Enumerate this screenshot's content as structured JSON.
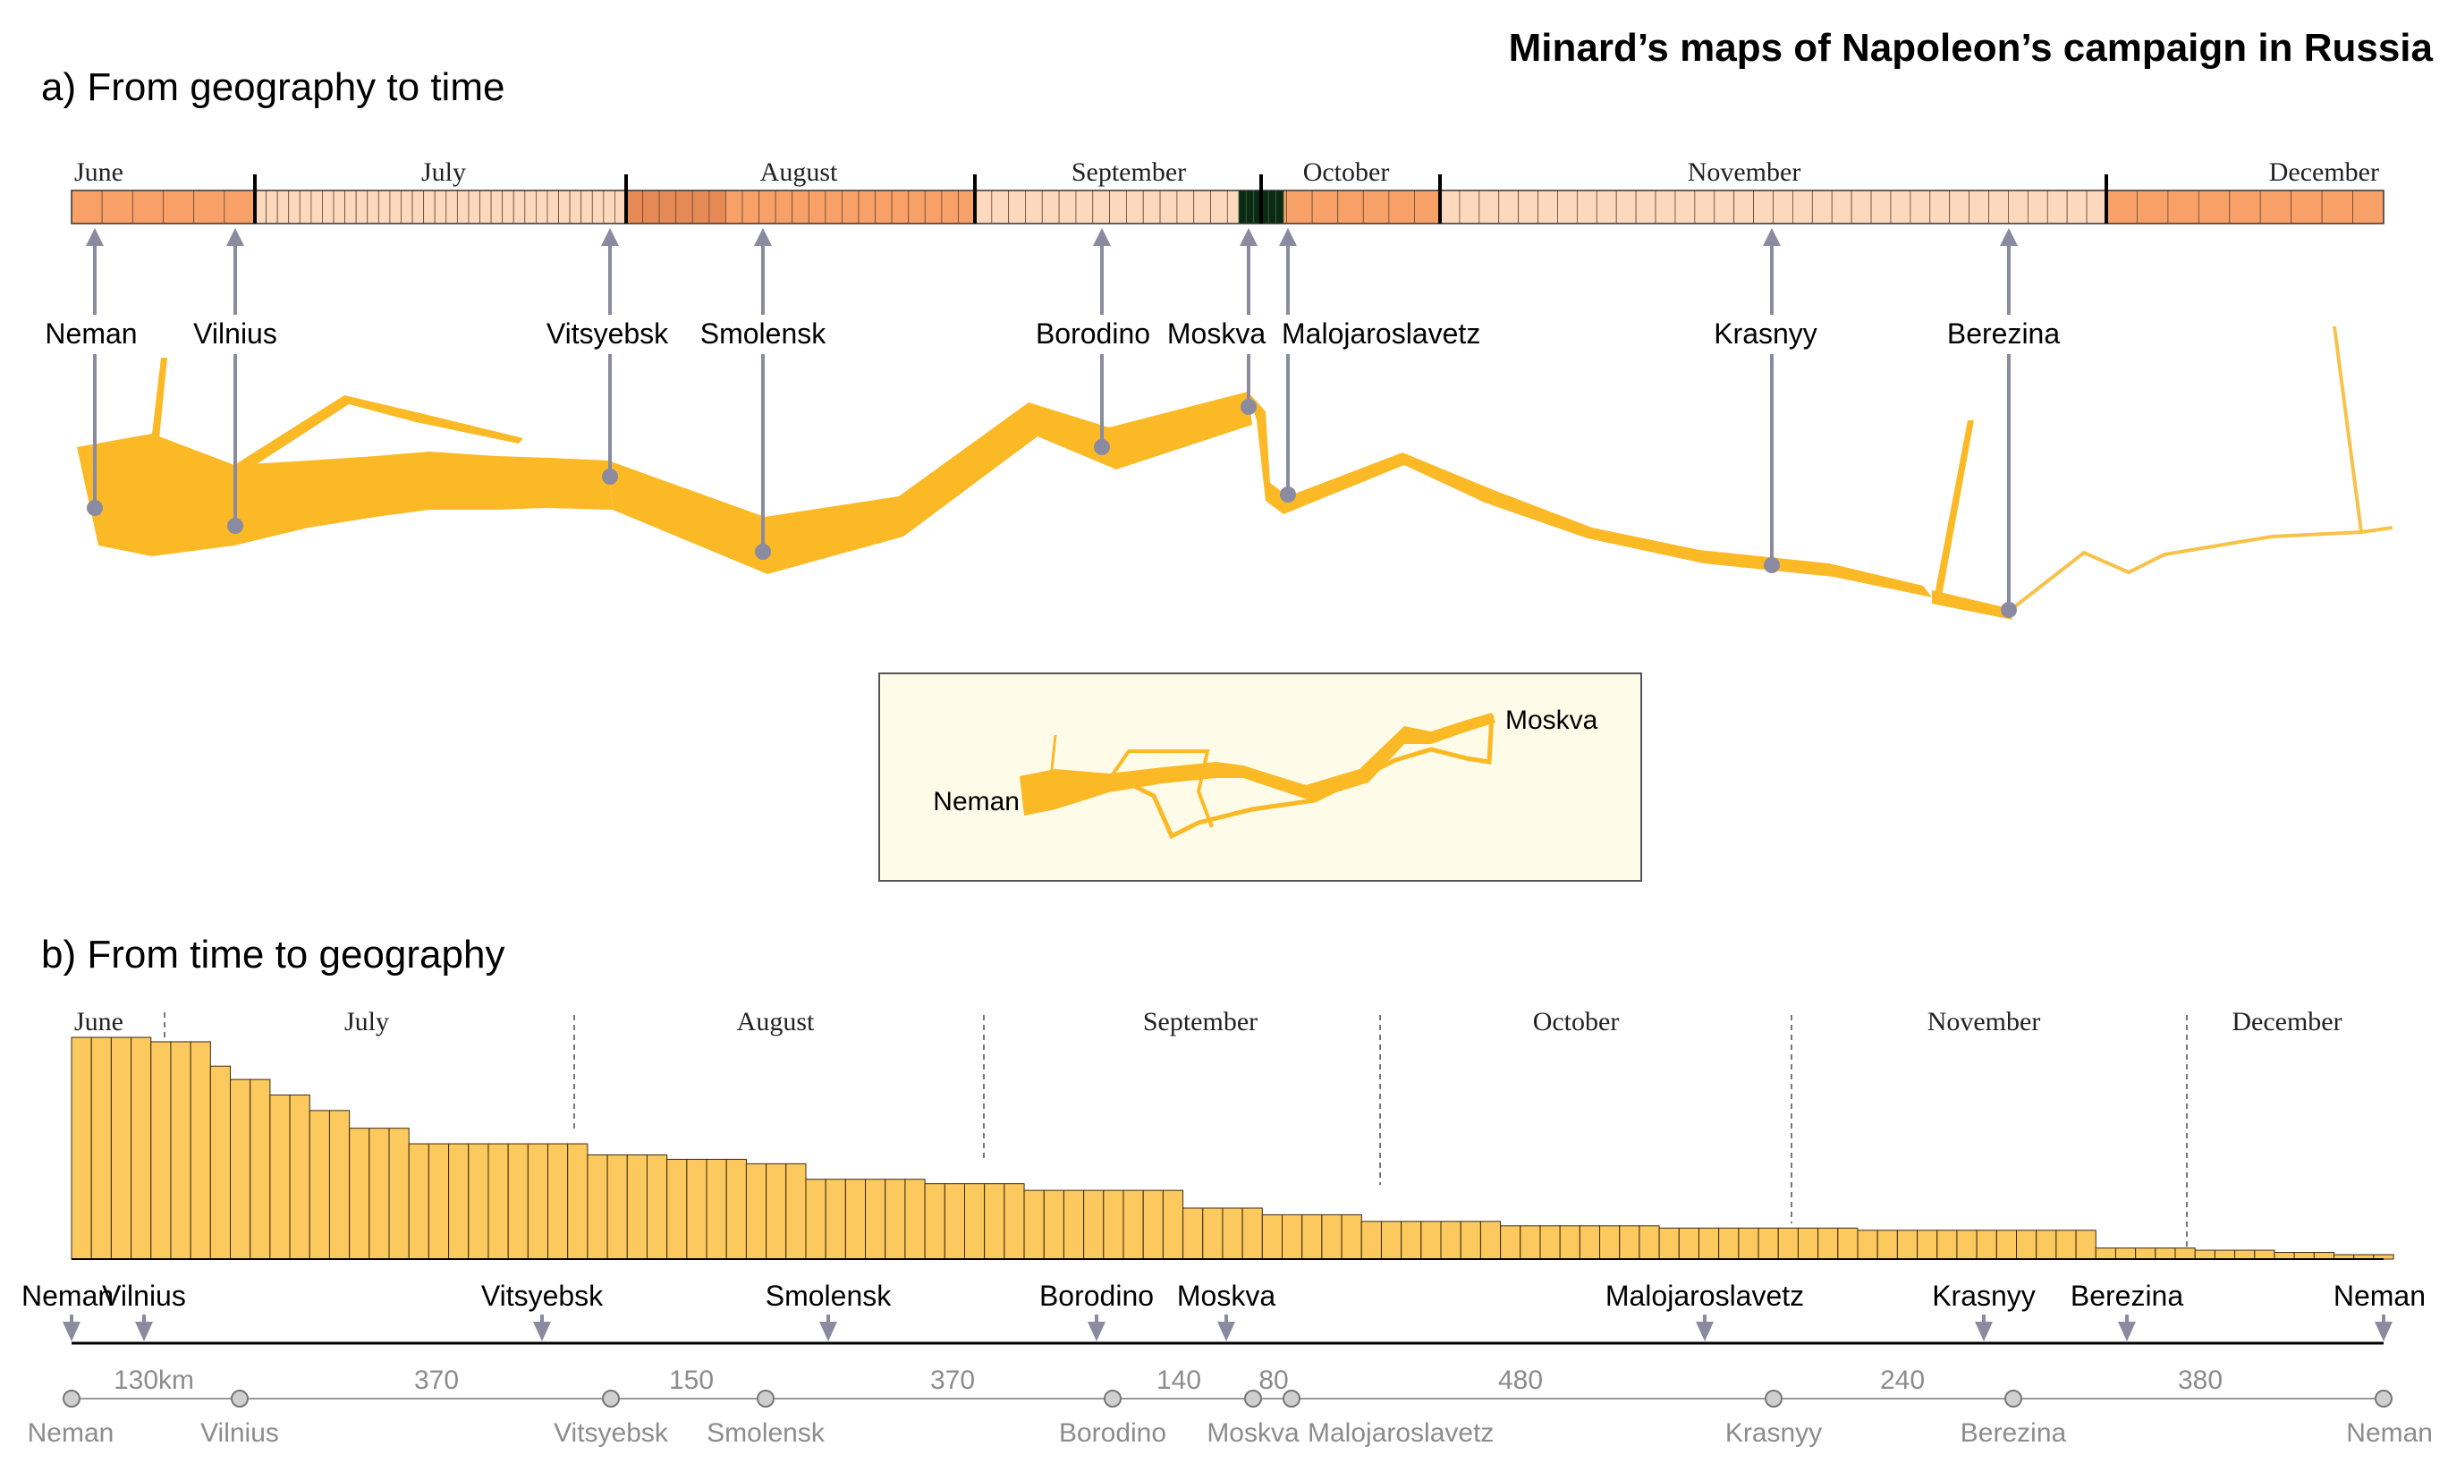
{
  "title": "Minard’s maps of Napoleon’s campaign in Russia",
  "colors": {
    "flow": "#fbb925",
    "flow_light": "#f7cf6e",
    "bar_fill": "#fcc95f",
    "timeline_dark": "#f7a067",
    "timeline_light": "#fcd9bd",
    "timeline_darkest": "#0c2a13",
    "marker": "#8a8aa0",
    "inset_bg": "#fefce8",
    "grey_text": "#8c8c8c"
  },
  "panel_a": {
    "heading": "a) From geography to time",
    "months": [
      "June",
      "July",
      "August",
      "September",
      "October",
      "November",
      "December"
    ],
    "places": [
      "Neman",
      "Vilnius",
      "Vitsyebsk",
      "Smolensk",
      "Borodino",
      "Moskva",
      "Malojaroslavetz",
      "Krasnyy",
      "Berezina"
    ],
    "inset": {
      "start_label": "Neman",
      "end_label": "Moskva"
    }
  },
  "chart_data": [
    {
      "type": "line",
      "title": "a) From geography to time",
      "description_source": "flow band of army size along route, linked to a daily timeline",
      "timeline_months": [
        "June",
        "July",
        "August",
        "September",
        "October",
        "November",
        "December"
      ],
      "events": [
        {
          "place": "Neman",
          "month": "June"
        },
        {
          "place": "Vilnius",
          "month": "June"
        },
        {
          "place": "Vitsyebsk",
          "month": "July"
        },
        {
          "place": "Smolensk",
          "month": "August"
        },
        {
          "place": "Borodino",
          "month": "September"
        },
        {
          "place": "Moskva",
          "month": "September"
        },
        {
          "place": "Malojaroslavetz",
          "month": "October"
        },
        {
          "place": "Krasnyy",
          "month": "November"
        },
        {
          "place": "Berezina",
          "month": "November"
        }
      ]
    },
    {
      "type": "bar",
      "title": "b) From time to geography",
      "months": [
        "June",
        "July",
        "August",
        "September",
        "October",
        "November",
        "December"
      ],
      "segment_values": [
        100,
        100,
        100,
        100,
        100,
        100,
        100,
        100,
        100,
        100,
        100,
        100,
        100,
        100,
        100,
        98,
        98,
        98,
        98,
        98,
        98,
        98,
        98,
        98,
        98,
        98,
        87,
        87,
        87,
        87,
        87,
        81,
        81,
        81,
        81,
        81,
        81,
        81,
        81,
        81,
        74,
        74,
        74,
        74,
        74,
        67,
        67,
        67,
        67,
        67,
        67,
        67,
        67,
        67,
        59,
        59,
        59,
        59,
        59,
        59,
        59,
        59,
        59,
        59,
        59,
        52,
        52,
        52,
        52,
        52,
        52,
        52,
        52,
        52,
        52,
        52,
        52,
        52,
        52,
        52,
        52,
        52,
        52,
        52,
        52,
        52,
        52,
        52,
        52,
        52,
        52,
        52,
        52,
        52,
        52,
        52,
        52,
        52,
        52,
        52,
        52,
        47,
        47,
        47,
        47,
        47,
        47,
        47,
        47,
        47,
        47,
        47,
        47,
        47,
        47,
        47,
        47,
        47,
        45,
        45,
        45,
        45,
        45,
        45,
        45,
        45,
        45,
        45,
        45,
        45,
        45,
        45,
        45,
        45,
        45,
        43,
        43,
        43,
        43,
        43,
        43,
        43,
        43,
        43,
        43,
        43,
        36,
        36,
        36,
        36,
        36,
        36,
        36,
        36,
        36,
        36,
        36,
        36,
        36,
        36,
        36,
        36,
        36,
        36,
        36,
        36,
        36,
        36,
        36,
        36,
        34,
        34,
        34,
        34,
        34,
        34,
        34,
        34,
        34,
        34,
        34,
        34,
        34,
        34,
        34,
        34,
        34,
        34,
        34,
        34,
        34,
        34,
        31,
        31,
        31,
        31,
        31,
        31,
        31,
        31,
        31,
        31,
        31,
        31,
        31,
        31,
        31,
        31,
        31,
        31,
        31,
        31,
        31,
        31,
        31,
        31,
        31,
        31,
        31,
        31,
        31,
        31,
        31,
        31,
        23,
        23,
        23,
        23,
        23,
        23,
        23,
        23,
        23,
        23,
        23,
        23,
        23,
        23,
        20,
        20,
        20,
        20,
        20,
        20,
        20,
        20,
        20,
        20,
        20,
        20,
        20,
        20,
        20,
        20,
        20,
        20,
        20,
        20,
        17,
        17,
        17,
        17,
        17,
        17,
        17,
        17,
        17,
        17,
        17,
        17,
        17,
        17,
        17,
        17,
        17,
        17,
        17,
        17,
        17,
        17,
        17,
        17,
        17,
        17,
        17,
        15,
        15,
        15,
        15,
        15,
        15,
        15,
        15,
        15,
        15,
        15,
        15,
        15,
        15,
        15,
        15,
        15,
        15,
        15,
        15,
        15,
        15,
        15,
        15,
        15,
        15,
        15,
        15,
        15,
        15,
        15,
        15,
        15,
        15,
        14,
        14,
        14,
        14,
        14,
        14,
        14,
        14,
        14,
        14,
        14,
        14,
        14,
        14,
        14,
        14,
        14,
        14,
        14,
        14,
        14,
        14,
        14,
        14,
        14,
        14,
        14,
        14,
        14,
        14,
        14,
        14,
        14,
        14,
        14,
        14,
        14,
        14,
        14,
        14,
        14,
        13,
        13,
        13,
        13,
        13,
        13,
        13,
        13,
        13,
        13,
        13,
        13,
        13,
        13,
        13,
        13,
        13,
        13,
        13,
        13,
        13,
        13,
        13,
        13,
        13,
        13,
        13,
        13,
        13,
        13,
        13,
        13,
        13,
        13,
        13,
        13,
        13,
        13,
        13,
        13,
        13,
        13,
        13,
        13,
        13,
        5,
        5,
        5,
        5,
        5,
        5,
        5,
        5,
        5,
        5,
        5,
        5,
        5,
        5,
        5,
        5,
        5,
        5,
        5,
        5,
        5,
        4,
        4,
        4,
        4,
        4,
        4,
        4,
        4,
        4,
        4,
        4,
        4,
        4,
        4,
        4,
        4,
        4,
        4,
        3,
        3,
        3,
        3,
        3,
        3,
        3,
        3,
        3,
        3,
        2,
        2,
        2,
        2,
        2,
        2,
        2,
        2,
        2,
        2,
        2,
        2
      ],
      "route_places": [
        "Neman",
        "Vilnius",
        "Vitsyebsk",
        "Smolensk",
        "Borodino",
        "Moskva",
        "Malojaroslavetz",
        "Krasnyy",
        "Berezina",
        "Neman"
      ],
      "distance_places": [
        "Neman",
        "Vilnius",
        "Vitsyebsk",
        "Smolensk",
        "Borodino",
        "Moskva",
        "Malojaroslavetz",
        "Krasnyy",
        "Berezina",
        "Neman"
      ],
      "distance_labels": [
        "130km",
        "370",
        "150",
        "370",
        "140",
        "80",
        "480",
        "240",
        "380"
      ]
    }
  ],
  "panel_b": {
    "heading": "b) From time to geography"
  }
}
